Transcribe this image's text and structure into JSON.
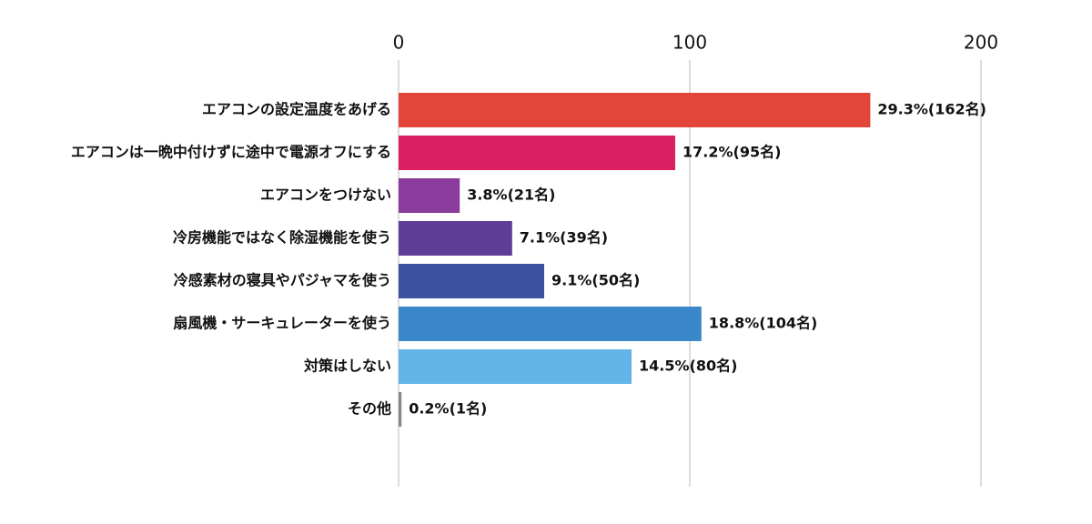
{
  "chart_data": {
    "type": "hbar",
    "categories": [
      "エアコンの設定温度をあげる",
      "エアコンは一晩中付けずに途中で電源オフにする",
      "エアコンをつけない",
      "冷房機能ではなく除湿機能を使う",
      "冷感素材の寝具やパジャマを使う",
      "扇風機・サーキュレーターを使う",
      "対策はしない",
      "その他"
    ],
    "values": [
      162,
      95,
      21,
      39,
      50,
      104,
      80,
      1
    ],
    "value_labels": [
      "29.3%(162名)",
      "17.2%(95名)",
      "3.8%(21名)",
      "7.1%(39名)",
      "9.1%(50名)",
      "18.8%(104名)",
      "14.5%(80名)",
      "0.2%(1名)"
    ],
    "colors": [
      "#e2463b",
      "#db1f62",
      "#8a3b9b",
      "#5f3d97",
      "#3c52a1",
      "#3a87c9",
      "#63b4e8",
      "#888888"
    ],
    "xlim": [
      0,
      200
    ],
    "xticks": [
      0,
      100,
      200
    ],
    "grid": true
  }
}
